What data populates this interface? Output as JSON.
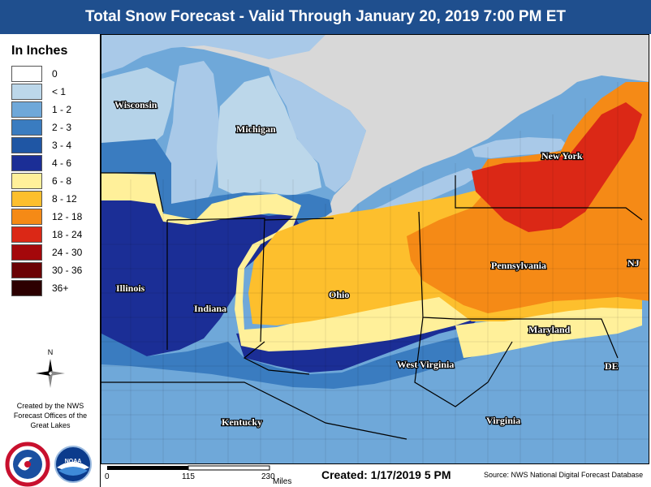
{
  "title": "Total Snow Forecast - Valid Through January 20, 2019 7:00 PM ET",
  "legend": {
    "title": "In Inches",
    "items": [
      {
        "label": "0",
        "color": "#ffffff"
      },
      {
        "label": "< 1",
        "color": "#bcd7ea"
      },
      {
        "label": "1 - 2",
        "color": "#6fa8d9"
      },
      {
        "label": "2 - 3",
        "color": "#3a7cc0"
      },
      {
        "label": "3 - 4",
        "color": "#1f56a4"
      },
      {
        "label": "4 - 6",
        "color": "#1b2e96"
      },
      {
        "label": "6 - 8",
        "color": "#fff09a"
      },
      {
        "label": "8 - 12",
        "color": "#fdbf2d"
      },
      {
        "label": "12 - 18",
        "color": "#f58a16"
      },
      {
        "label": "18 - 24",
        "color": "#db2816"
      },
      {
        "label": "24 - 30",
        "color": "#a4080b"
      },
      {
        "label": "30 - 36",
        "color": "#6b0205"
      },
      {
        "label": "36+",
        "color": "#2c0001"
      }
    ]
  },
  "compass": {
    "label": "N"
  },
  "credit": {
    "line1": "Created by the NWS",
    "line2": "Forecast Offices of the",
    "line3": "Great Lakes"
  },
  "states": {
    "wisconsin": "Wisconsin",
    "michigan": "Michigan",
    "illinois": "Illinois",
    "indiana": "Indiana",
    "ohio": "Ohio",
    "new_york": "New York",
    "pennsylvania": "Pennsylvania",
    "nj": "NJ",
    "maryland": "Maryland",
    "de": "DE",
    "west_virginia": "West Virginia",
    "kentucky": "Kentucky",
    "virginia": "Virginia"
  },
  "scale": {
    "tick0": "0",
    "tick1": "115",
    "tick2": "230",
    "unit": "Miles"
  },
  "created": "Created: 1/17/2019 5 PM",
  "source": "Source: NWS National Digital Forecast Database",
  "colors": {
    "title_bar": "#1f4f8e",
    "lake": "#a9c9e8",
    "canada": "#d8d8d8"
  }
}
